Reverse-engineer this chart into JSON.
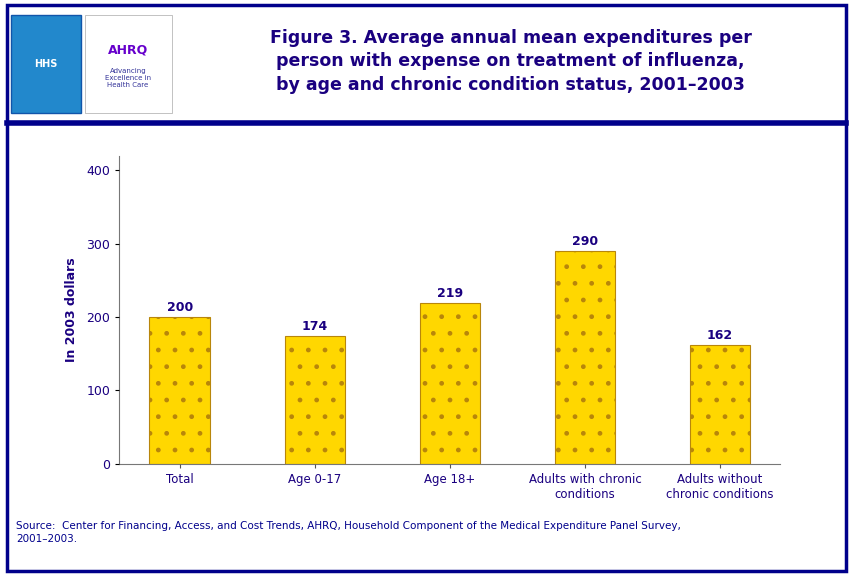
{
  "categories": [
    "Total",
    "Age 0-17",
    "Age 18+",
    "Adults with chronic\nconditions",
    "Adults without\nchronic conditions"
  ],
  "values": [
    200,
    174,
    219,
    290,
    162
  ],
  "bar_color": "#FFD700",
  "bar_edgecolor": "#B8860B",
  "ylabel": "In 2003 dollars",
  "ylim": [
    0,
    420
  ],
  "yticks": [
    0,
    100,
    200,
    300,
    400
  ],
  "title_line1": "Figure 3. Average annual mean expenditures per",
  "title_line2": "person with expense on treatment of influenza,",
  "title_line3": "by age and chronic condition status, 2001–2003",
  "title_color": "#1a0080",
  "title_fontsize": 12.5,
  "axis_label_color": "#1a0080",
  "tick_label_color": "#1a0080",
  "bar_label_color": "#1a0080",
  "bar_label_fontsize": 9,
  "ylabel_fontsize": 9,
  "xtick_fontsize": 8.5,
  "ytick_fontsize": 9,
  "source_text": "Source:  Center for Financing, Access, and Cost Trends, AHRQ, Household Component of the Medical Expenditure Panel Survey,\n2001–2003.",
  "source_fontsize": 7.5,
  "source_color": "#00008B",
  "fig_bg_color": "#ffffff",
  "chart_bg_color": "#ffffff",
  "border_color": "#00008B",
  "separator_color": "#00008B",
  "hatch_pattern": ".",
  "bar_width": 0.45
}
